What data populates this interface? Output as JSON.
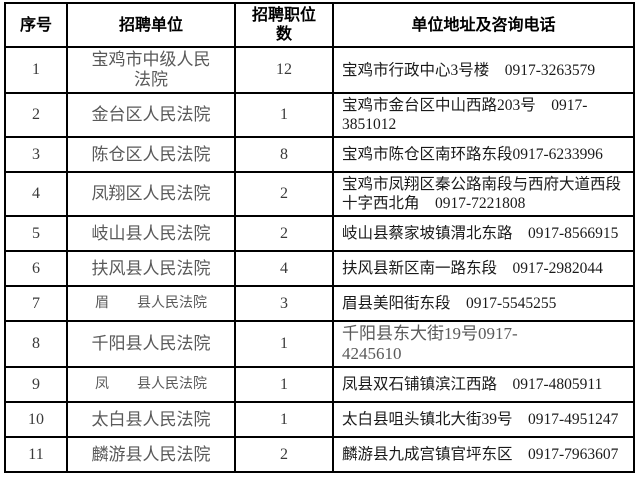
{
  "colors": {
    "border": "#000000",
    "header_text": "#000000",
    "unit_text": "#595959",
    "address_text": "#1a1a1a",
    "muted_address_text": "#595959",
    "background": "#ffffff"
  },
  "table": {
    "columns": [
      {
        "label": "序号"
      },
      {
        "label": "招聘单位"
      },
      {
        "label": "招聘职位\n数"
      },
      {
        "label": "单位地址及咨询电话"
      }
    ],
    "rows": [
      {
        "no": "1",
        "unit": "宝鸡市中级人民\n法院",
        "positions": "12",
        "address": "宝鸡市行政中心3号楼　0917-3263579"
      },
      {
        "no": "2",
        "unit": "金台区人民法院",
        "positions": "1",
        "address": "宝鸡市金台区中山西路203号　0917-\n3851012"
      },
      {
        "no": "3",
        "unit": "陈仓区人民法院",
        "positions": "8",
        "address": "宝鸡市陈仓区南环路东段0917-6233996"
      },
      {
        "no": "4",
        "unit": "凤翔区人民法院",
        "positions": "2",
        "address": "宝鸡市凤翔区秦公路南段与西府大道西段\n十字西北角　0917-7221808"
      },
      {
        "no": "5",
        "unit": "岐山县人民法院",
        "positions": "2",
        "address": "岐山县蔡家坡镇渭北东路　0917-8566915"
      },
      {
        "no": "6",
        "unit": "扶风县人民法院",
        "positions": "4",
        "address": "扶风县新区南一路东段　0917-2982044"
      },
      {
        "no": "7",
        "unit": "眉　　县人民法院",
        "positions": "3",
        "address": "眉县美阳街东段　0917-5545255",
        "unit_small": true
      },
      {
        "no": "8",
        "unit": "千阳县人民法院",
        "positions": "1",
        "address": "千阳县东大街19号0917-\n4245610",
        "address_muted": true
      },
      {
        "no": "9",
        "unit": "凤　　县人民法院",
        "positions": "1",
        "address": "凤县双石铺镇滨江西路　0917-4805911",
        "unit_small": true
      },
      {
        "no": "10",
        "unit": "太白县人民法院",
        "positions": "1",
        "address": "太白县咀头镇北大街39号　0917-4951247"
      },
      {
        "no": "11",
        "unit": "麟游县人民法院",
        "positions": "2",
        "address": "麟游县九成宫镇官坪东区　0917-7963607"
      }
    ]
  }
}
